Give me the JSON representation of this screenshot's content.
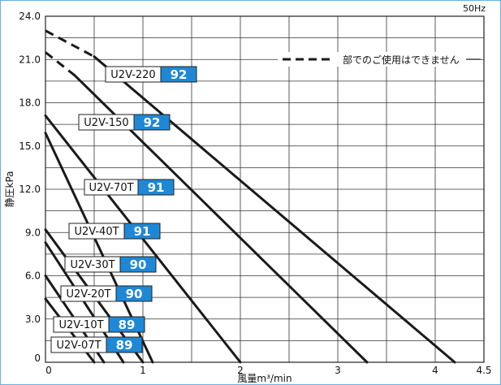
{
  "chart_data": {
    "type": "line",
    "frequency_note": "50Hz",
    "xlabel": "風量m³/min",
    "ylabel": "静圧kPa",
    "xlim": [
      0,
      4.5
    ],
    "ylim": [
      0,
      24.0
    ],
    "x_ticks": [
      "0",
      "1",
      "2",
      "3",
      "4",
      "4.5"
    ],
    "y_ticks": [
      "0",
      "3.0",
      "6.0",
      "9.0",
      "12.0",
      "15.0",
      "18.0",
      "21.0",
      "24.0"
    ],
    "legend_dash_text": "部でのご使用はできません",
    "series": [
      {
        "name": "U2V-220",
        "badge": "92",
        "dashed_segment": [
          [
            0,
            23.0
          ],
          [
            0.5,
            21.2
          ]
        ],
        "solid_segment": [
          [
            0.5,
            21.2
          ],
          [
            4.2,
            0
          ]
        ]
      },
      {
        "name": "U2V-150",
        "badge": "92",
        "dashed_segment": [
          [
            0,
            21.5
          ],
          [
            0.3,
            19.9
          ]
        ],
        "solid_segment": [
          [
            0.3,
            19.9
          ],
          [
            3.3,
            0
          ]
        ]
      },
      {
        "name": "U2V-70T",
        "badge": "91",
        "solid_segment": [
          [
            0,
            17.1
          ],
          [
            2.0,
            0
          ]
        ]
      },
      {
        "name": "U2V-40T",
        "badge": "91",
        "solid_segment": [
          [
            0,
            15.9
          ],
          [
            1.1,
            0
          ]
        ]
      },
      {
        "name": "U2V-30T",
        "badge": "90",
        "solid_segment": [
          [
            0,
            9.2
          ],
          [
            1.0,
            0
          ]
        ]
      },
      {
        "name": "U2V-20T",
        "badge": "90",
        "solid_segment": [
          [
            0,
            8.3
          ],
          [
            0.8,
            0
          ]
        ]
      },
      {
        "name": "U2V-10T",
        "badge": "89",
        "solid_segment": [
          [
            0,
            6.0
          ],
          [
            0.6,
            0
          ]
        ]
      },
      {
        "name": "U2V-07T",
        "badge": "89",
        "solid_segment": [
          [
            0,
            4.4
          ],
          [
            0.5,
            0
          ]
        ]
      }
    ],
    "colors": {
      "line": "#1a1a1a",
      "grid": "#333333",
      "badge": "#1e88d6",
      "badge_text": "#ffffff",
      "frame": "#6ab0de"
    }
  }
}
